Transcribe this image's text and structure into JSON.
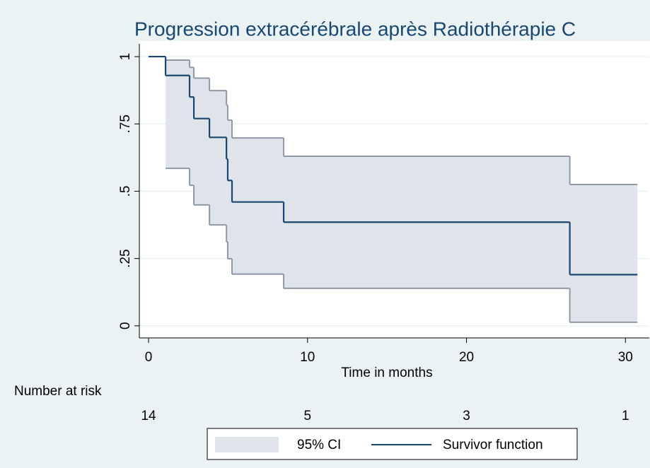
{
  "chart_data": {
    "type": "step",
    "title": "Progression extracérébrale après Radiothérapie C",
    "xlabel": "Time in months",
    "x": [
      0,
      1.07,
      2.58,
      2.85,
      3.83,
      4.9,
      4.98,
      5.25,
      8.5,
      26.5,
      30.75
    ],
    "series": [
      {
        "name": "95% CI",
        "color": "#dfe3ea",
        "line_color": "#8e99a8",
        "lower": [
          null,
          0.585,
          0.522,
          0.449,
          0.375,
          0.312,
          0.249,
          0.192,
          0.139,
          0.013,
          0.013
        ],
        "upper": [
          null,
          0.987,
          0.96,
          0.92,
          0.874,
          0.82,
          0.764,
          0.698,
          0.63,
          0.525,
          0.525
        ]
      },
      {
        "name": "Survivor function",
        "color": "#1a476f",
        "values": [
          1,
          0.93,
          0.85,
          0.77,
          0.7,
          0.62,
          0.54,
          0.46,
          0.385,
          0.19,
          0.19
        ]
      }
    ],
    "xlim": [
      -0.58,
      31.5
    ],
    "ylim": [
      -0.045,
      1.058
    ],
    "xticks": [
      0,
      10,
      20,
      30
    ],
    "yticks": [
      0,
      {
        "value": 0.25,
        "label": ".25"
      },
      {
        "value": 0.5,
        "label": ".5"
      },
      {
        "value": 0.75,
        "label": ".75"
      },
      1
    ],
    "grid": true,
    "risk_table": {
      "label": "Number at risk",
      "counts": [
        14,
        5,
        3,
        1
      ]
    }
  }
}
